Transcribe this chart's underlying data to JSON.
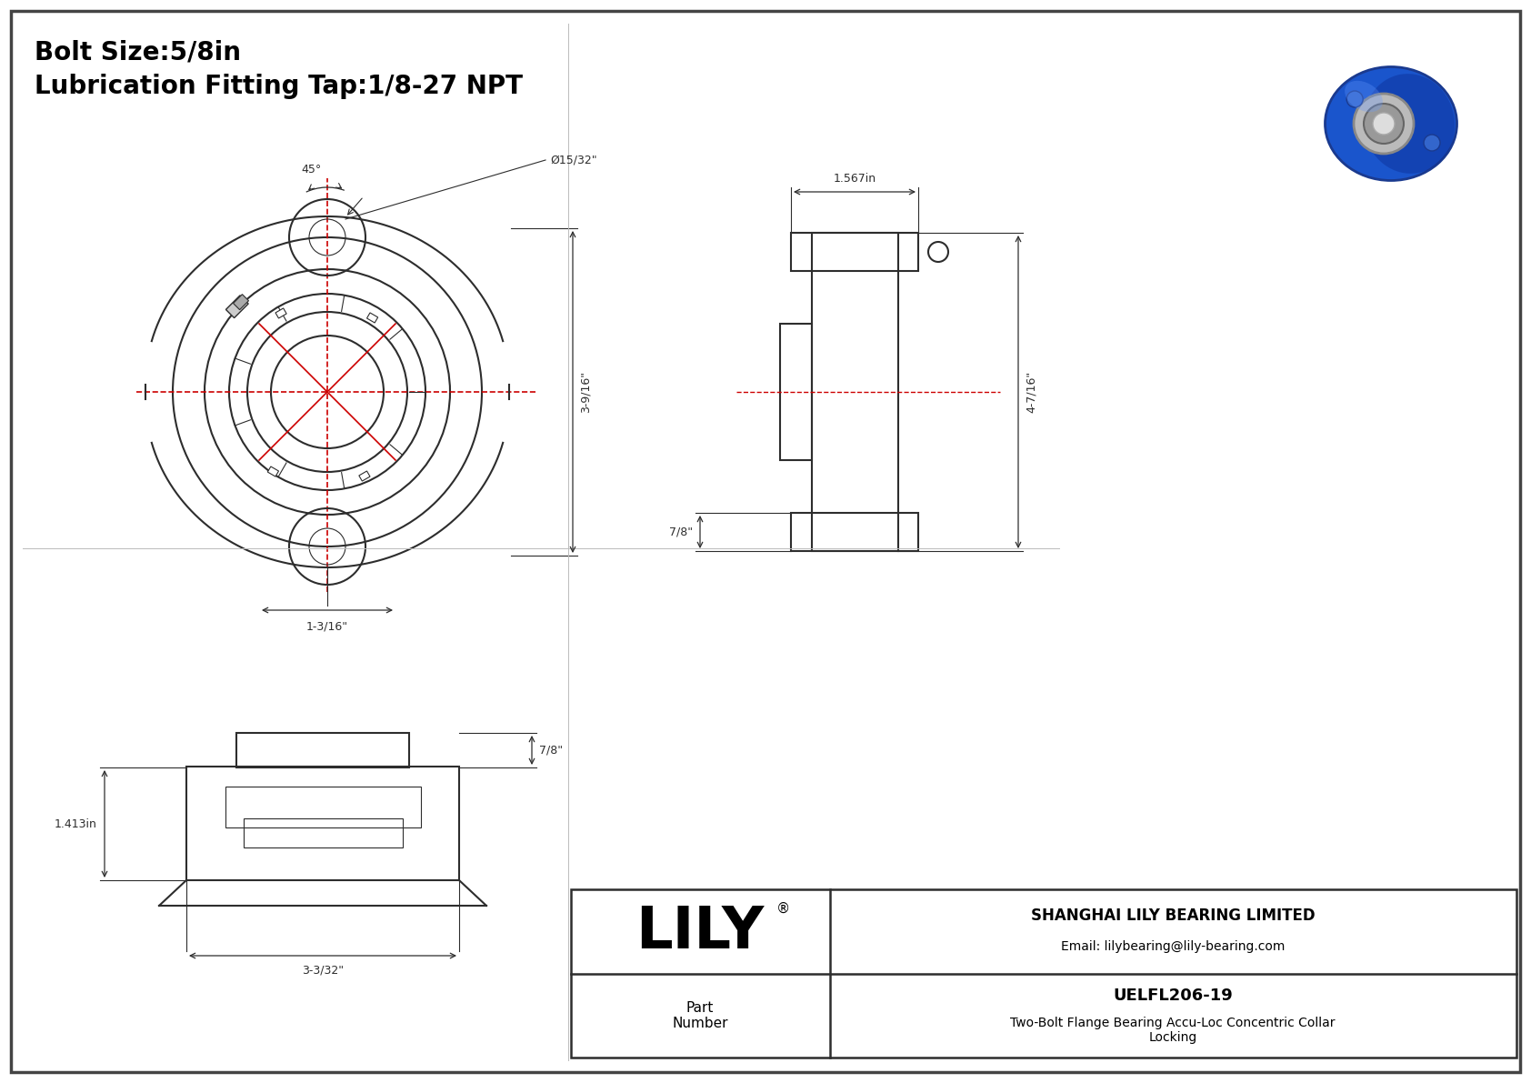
{
  "bg_color": "#ffffff",
  "line_color": "#2d2d2d",
  "red_color": "#cc0000",
  "dim_color": "#2d2d2d",
  "title_line1": "Bolt Size:5/8in",
  "title_line2": "Lubrication Fitting Tap:1/8-27 NPT",
  "company": "SHANGHAI LILY BEARING LIMITED",
  "email": "Email: lilybearing@lily-bearing.com",
  "part_label": "Part\nNumber",
  "part_number": "UELFL206-19",
  "part_desc": "Two-Bolt Flange Bearing Accu-Loc Concentric Collar\nLocking",
  "lily_text": "LILY",
  "registered": "®",
  "dim_45": "45°",
  "dim_hole": "Ø15/32\"",
  "dim_height": "3-9/16\"",
  "dim_bottom": "1-3/16\"",
  "dim_side_top": "1.567in",
  "dim_side_height": "4-7/16\"",
  "dim_side_bottom": "7/8\"",
  "dim_front_top": "7/8\"",
  "dim_front_left": "1.413in",
  "dim_front_bottom": "3-3/32\""
}
